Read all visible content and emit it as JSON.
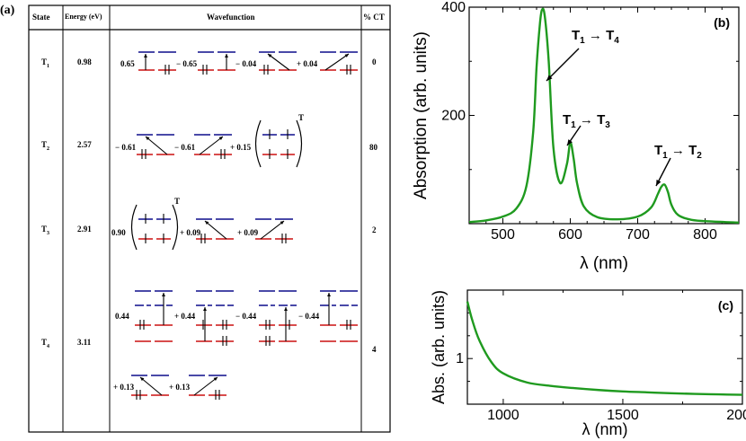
{
  "panel_a": {
    "label": "(a)",
    "headers": {
      "state": "State",
      "energy": "Energy (eV)",
      "wavefunction": "Wavefunction",
      "ct": "% CT"
    },
    "rows": [
      {
        "state": "T",
        "sub": "1",
        "energy": "0.98",
        "ct": "0",
        "coeffs": [
          "0.65",
          "− 0.65",
          "− 0.04",
          "+ 0.04"
        ]
      },
      {
        "state": "T",
        "sub": "2",
        "energy": "2.57",
        "ct": "80",
        "coeffs": [
          "− 0.61",
          "− 0.61",
          "+ 0.15"
        ],
        "sup": "T"
      },
      {
        "state": "T",
        "sub": "3",
        "energy": "2.91",
        "ct": "2",
        "coeffs": [
          "0.90",
          "+ 0.09",
          "+ 0.09"
        ],
        "sup": "T"
      },
      {
        "state": "T",
        "sub": "4",
        "energy": "3.11",
        "ct": "4",
        "coeffs": [
          "0.44",
          "+ 0.44",
          "− 0.44",
          "− 0.44",
          "+ 0.13",
          "+ 0.13"
        ]
      }
    ]
  },
  "colors": {
    "occupied": "#cc1111",
    "virtual": "#0d0d8c",
    "curve": "#1f9a1f"
  },
  "chart_data": [
    {
      "type": "line",
      "panel": "(b)",
      "xlabel": "λ (nm)",
      "ylabel": "Absorption (arb. units)",
      "xlim": [
        450,
        850
      ],
      "ylim": [
        0,
        400
      ],
      "xticks": [
        "500",
        "600",
        "700",
        "800"
      ],
      "yticks": [
        "200",
        "400"
      ],
      "x": [
        450,
        475,
        500,
        520,
        535,
        545,
        550,
        555,
        558,
        562,
        568,
        575,
        585,
        595,
        600,
        605,
        610,
        620,
        640,
        670,
        700,
        720,
        730,
        735,
        740,
        745,
        750,
        760,
        780,
        810,
        850
      ],
      "y": [
        3,
        6,
        13,
        28,
        70,
        170,
        290,
        370,
        395,
        385,
        300,
        140,
        75,
        110,
        150,
        120,
        75,
        32,
        12,
        8,
        13,
        30,
        55,
        68,
        72,
        58,
        35,
        16,
        7,
        4,
        2
      ],
      "annotations": [
        {
          "text": "T",
          "sub": "1",
          "arrow": "→",
          "text2": "T",
          "sub2": "4",
          "x": 558
        },
        {
          "text": "T",
          "sub": "1",
          "arrow": "→",
          "text2": "T",
          "sub2": "3",
          "x": 604
        },
        {
          "text": "T",
          "sub": "1",
          "arrow": "→",
          "text2": "T",
          "sub2": "2",
          "x": 738
        }
      ]
    },
    {
      "type": "line",
      "panel": "(c)",
      "xlabel": "λ (nm)",
      "ylabel": "Abs. (arb. units)",
      "xlim": [
        850,
        2000
      ],
      "ylim": [
        0.8,
        1.3
      ],
      "xticks": [
        "1000",
        "1500",
        "2000"
      ],
      "yticks": [
        "1"
      ],
      "x": [
        850,
        870,
        900,
        950,
        1000,
        1100,
        1200,
        1300,
        1400,
        1500,
        1600,
        1700,
        1800,
        1900,
        2000
      ],
      "y": [
        1.25,
        1.17,
        1.08,
        0.985,
        0.935,
        0.895,
        0.88,
        0.87,
        0.862,
        0.856,
        0.852,
        0.848,
        0.845,
        0.843,
        0.841
      ]
    }
  ]
}
